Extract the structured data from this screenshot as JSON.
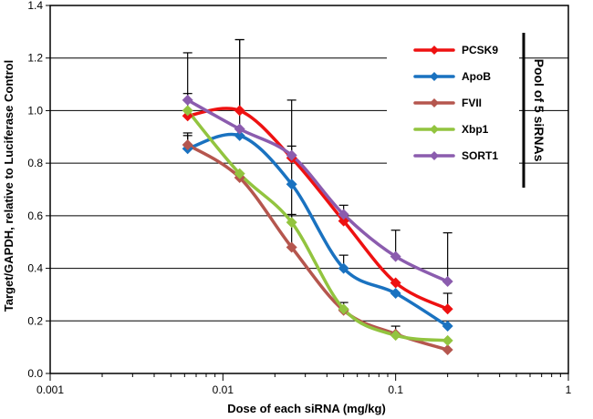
{
  "chart_data": {
    "type": "line",
    "title": "",
    "xlabel": "Dose of each siRNA (mg/kg)",
    "ylabel": "Target/GAPDH,  relative to Luciferase Control",
    "xscale": "log",
    "xlim": [
      0.001,
      1
    ],
    "ylim": [
      0,
      1.4
    ],
    "x_ticks": [
      0.001,
      0.01,
      0.1,
      1
    ],
    "x_tick_labels": [
      "0.001",
      "0.01",
      "0.1",
      "1"
    ],
    "y_ticks": [
      0,
      0.2,
      0.4,
      0.6,
      0.8,
      1.0,
      1.2,
      1.4
    ],
    "y_tick_labels": [
      "0.0",
      "0.2",
      "0.4",
      "0.6",
      "0.8",
      "1.0",
      "1.2",
      "1.4"
    ],
    "grid": "horizontal",
    "legend_position": "top-right",
    "legend_annotation": "Pool of  5 siRNAs",
    "x": [
      0.00625,
      0.0125,
      0.025,
      0.05,
      0.1,
      0.2
    ],
    "series": [
      {
        "name": "PCSK9",
        "color": "#ee1111",
        "values": [
          0.98,
          1.0,
          0.82,
          0.58,
          0.345,
          0.245
        ],
        "error": [
          null,
          0.27,
          null,
          0.06,
          null,
          0.06
        ]
      },
      {
        "name": "ApoB",
        "color": "#1a72c0",
        "values": [
          0.855,
          0.905,
          0.72,
          0.4,
          0.305,
          0.18
        ],
        "error": [
          0.05,
          null,
          null,
          0.05,
          null,
          null
        ]
      },
      {
        "name": "FVII",
        "color": "#b5564e",
        "values": [
          0.87,
          0.745,
          0.48,
          0.24,
          0.15,
          0.09
        ],
        "error": [
          0.045,
          null,
          0.125,
          0.03,
          0.03,
          null
        ]
      },
      {
        "name": "Xbp1",
        "color": "#92c43f",
        "values": [
          1.0,
          0.76,
          0.575,
          0.245,
          0.145,
          0.125
        ],
        "error": [
          0.065,
          null,
          0.29,
          null,
          null,
          null
        ]
      },
      {
        "name": "SORT1",
        "color": "#8b5cae",
        "values": [
          1.04,
          0.93,
          0.83,
          0.605,
          0.445,
          0.35
        ],
        "error": [
          0.18,
          0.34,
          0.21,
          null,
          0.1,
          0.185
        ]
      }
    ]
  }
}
